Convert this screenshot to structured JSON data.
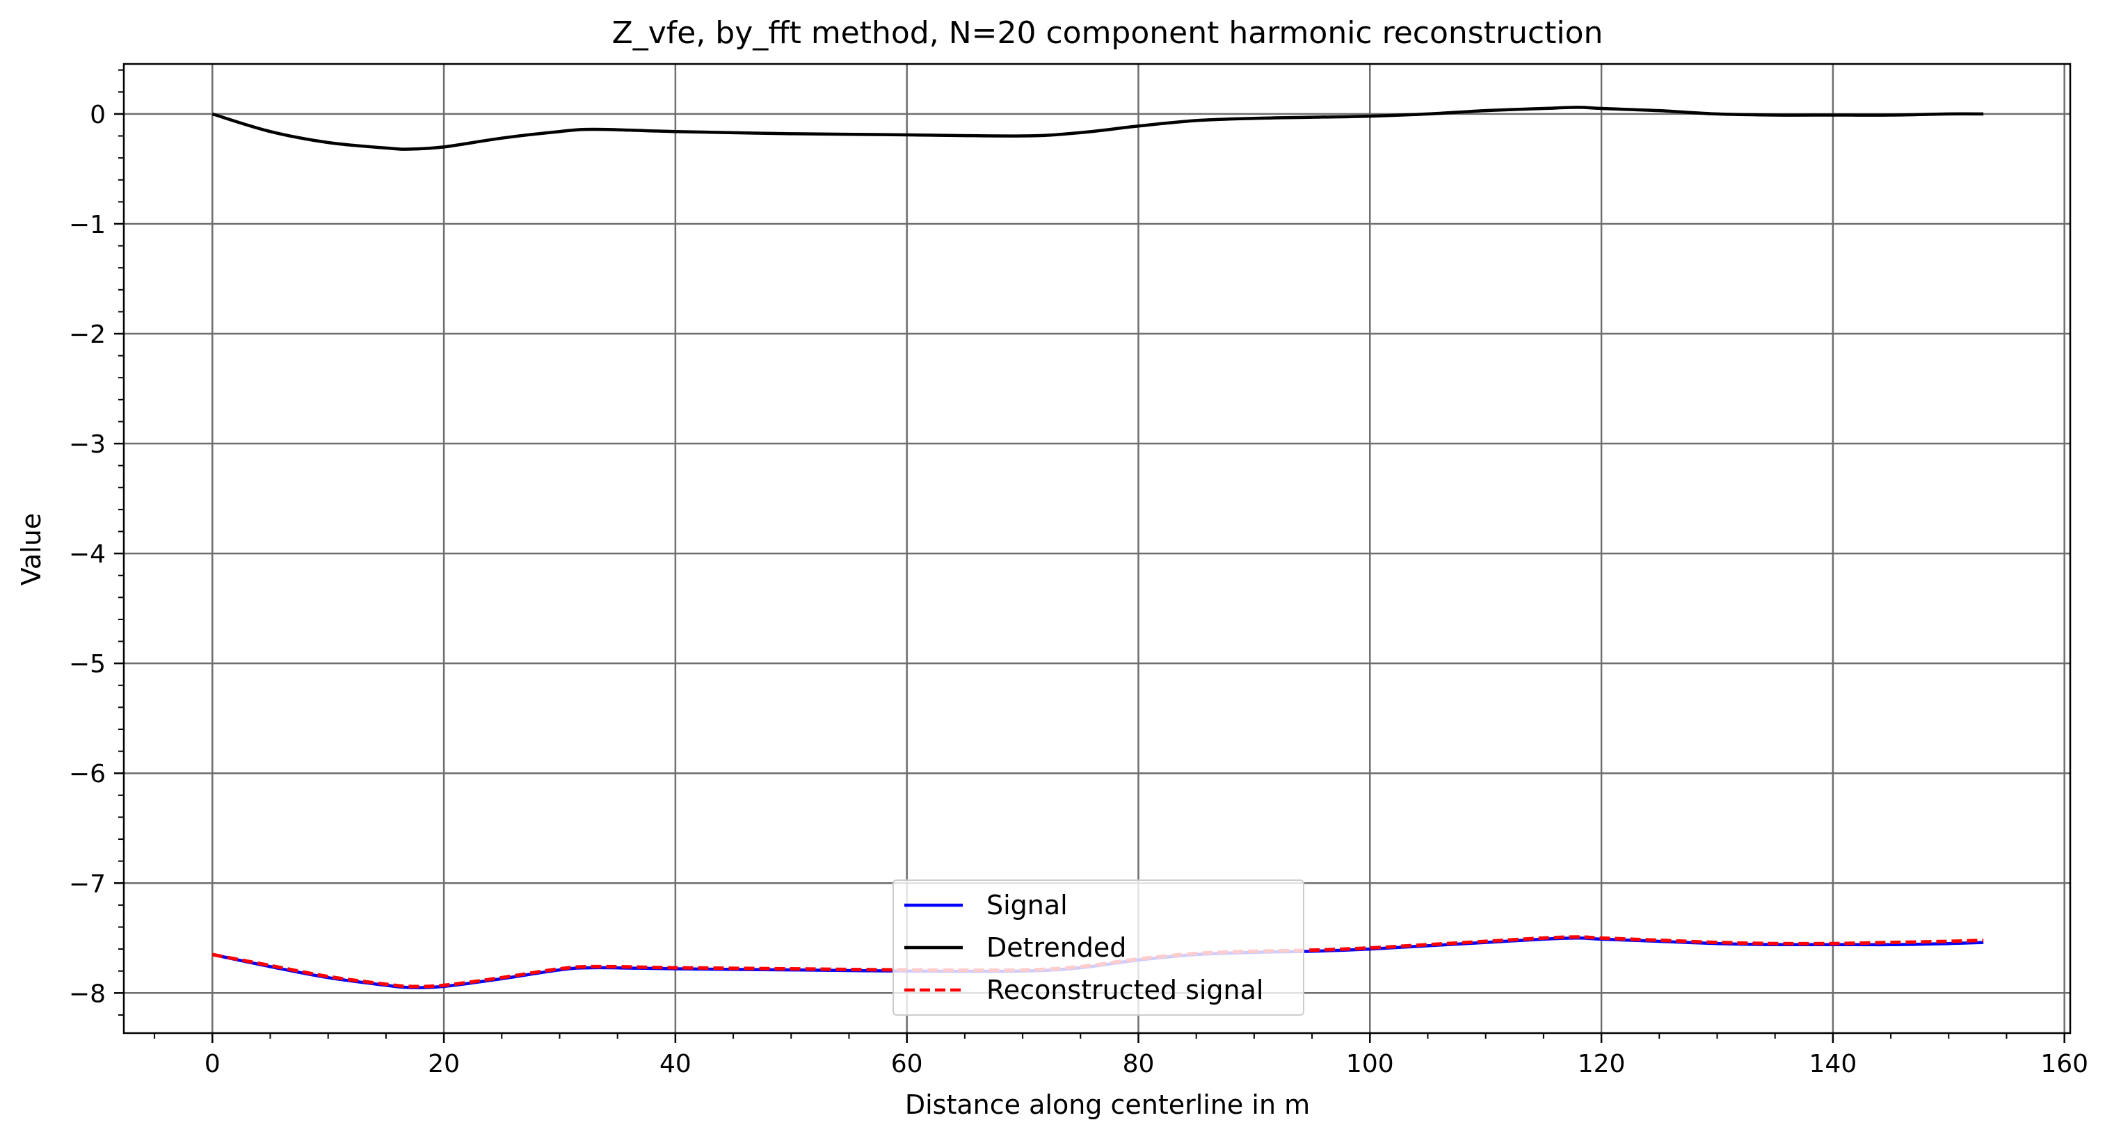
{
  "chart_data": {
    "type": "line",
    "title": "Z_vfe, by_fft method, N=20 component harmonic reconstruction",
    "xlabel": "Distance along centerline in m",
    "ylabel": "Value",
    "xlim": [
      -7.65,
      160.5
    ],
    "ylim": [
      -8.365,
      0.455
    ],
    "x_ticks": [
      0,
      20,
      40,
      60,
      80,
      100,
      120,
      140,
      160
    ],
    "x_tick_labels": [
      "0",
      "20",
      "40",
      "60",
      "80",
      "100",
      "120",
      "140",
      "160"
    ],
    "y_ticks": [
      0,
      -1,
      -2,
      -3,
      -4,
      -5,
      -6,
      -7,
      -8
    ],
    "y_tick_labels": [
      "0",
      "−1",
      "−2",
      "−3",
      "−4",
      "−5",
      "−6",
      "−7",
      "−8"
    ],
    "x_minor_step": 5,
    "y_minor_step": 0.2,
    "grid": true,
    "legend_position": "bottom-center",
    "series": [
      {
        "name": "Signal",
        "color": "#0000ff",
        "style": "solid",
        "x": [
          0,
          5,
          10,
          15,
          17,
          20,
          25,
          30,
          33,
          40,
          50,
          60,
          70,
          75,
          80,
          85,
          90,
          95,
          100,
          105,
          110,
          115,
          118,
          120,
          125,
          130,
          135,
          140,
          145,
          150,
          153
        ],
        "y": [
          -7.65,
          -7.76,
          -7.86,
          -7.93,
          -7.95,
          -7.94,
          -7.87,
          -7.79,
          -7.77,
          -7.78,
          -7.79,
          -7.8,
          -7.8,
          -7.77,
          -7.7,
          -7.65,
          -7.63,
          -7.62,
          -7.6,
          -7.57,
          -7.54,
          -7.51,
          -7.5,
          -7.51,
          -7.53,
          -7.55,
          -7.56,
          -7.56,
          -7.56,
          -7.55,
          -7.54
        ]
      },
      {
        "name": "Detrended",
        "color": "#000000",
        "style": "solid",
        "x": [
          0,
          5,
          10,
          15,
          17,
          20,
          25,
          30,
          33,
          40,
          50,
          60,
          70,
          75,
          80,
          85,
          90,
          95,
          100,
          105,
          110,
          115,
          118,
          120,
          125,
          130,
          135,
          140,
          145,
          150,
          153
        ],
        "y": [
          0,
          -0.16,
          -0.26,
          -0.31,
          -0.32,
          -0.3,
          -0.22,
          -0.16,
          -0.14,
          -0.16,
          -0.18,
          -0.19,
          -0.2,
          -0.17,
          -0.11,
          -0.06,
          -0.04,
          -0.03,
          -0.02,
          0.0,
          0.03,
          0.05,
          0.06,
          0.05,
          0.03,
          0.0,
          -0.01,
          -0.01,
          -0.01,
          0.0,
          0.0
        ]
      },
      {
        "name": "Reconstructed signal",
        "color": "#ff0000",
        "style": "dashed",
        "x": [
          0,
          5,
          10,
          15,
          17,
          20,
          25,
          30,
          33,
          40,
          50,
          60,
          70,
          75,
          80,
          85,
          90,
          95,
          100,
          105,
          110,
          115,
          118,
          120,
          125,
          130,
          135,
          140,
          145,
          150,
          153
        ],
        "y": [
          -7.65,
          -7.75,
          -7.85,
          -7.92,
          -7.94,
          -7.93,
          -7.86,
          -7.78,
          -7.76,
          -7.77,
          -7.78,
          -7.79,
          -7.79,
          -7.76,
          -7.69,
          -7.64,
          -7.62,
          -7.61,
          -7.59,
          -7.56,
          -7.53,
          -7.5,
          -7.49,
          -7.5,
          -7.52,
          -7.54,
          -7.55,
          -7.55,
          -7.54,
          -7.53,
          -7.52
        ]
      }
    ]
  }
}
